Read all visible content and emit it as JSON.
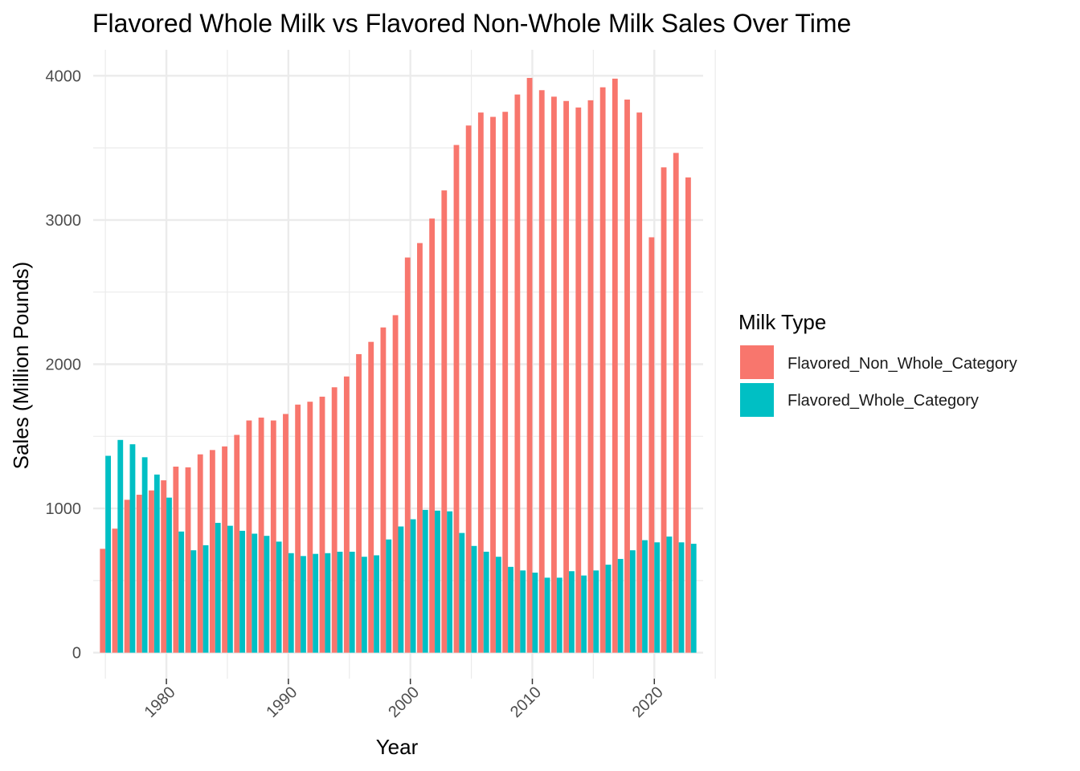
{
  "chart_data": {
    "type": "bar",
    "title": "Flavored Whole Milk vs Flavored Non-Whole Milk Sales Over Time",
    "xlabel": "Year",
    "ylabel": "Sales (Million Pounds)",
    "xlim": [
      1974,
      2024
    ],
    "ylim": [
      -180,
      4180
    ],
    "x_ticks": [
      1980,
      1990,
      2000,
      2010,
      2020
    ],
    "y_ticks": [
      0,
      1000,
      2000,
      3000,
      4000
    ],
    "grid": true,
    "legend": {
      "title": "Milk Type",
      "position": "right"
    },
    "x": [
      1975,
      1976,
      1977,
      1978,
      1979,
      1980,
      1981,
      1982,
      1983,
      1984,
      1985,
      1986,
      1987,
      1988,
      1989,
      1990,
      1991,
      1992,
      1993,
      1994,
      1995,
      1996,
      1997,
      1998,
      1999,
      2000,
      2001,
      2002,
      2003,
      2004,
      2005,
      2006,
      2007,
      2008,
      2009,
      2010,
      2011,
      2012,
      2013,
      2014,
      2015,
      2016,
      2017,
      2018,
      2019,
      2020,
      2021,
      2022,
      2023
    ],
    "series": [
      {
        "name": "Flavored_Non_Whole_Category",
        "color": "#F8766D",
        "values": [
          720,
          860,
          1060,
          1095,
          1125,
          1195,
          1290,
          1285,
          1375,
          1405,
          1430,
          1510,
          1610,
          1630,
          1610,
          1655,
          1720,
          1740,
          1775,
          1840,
          1915,
          2070,
          2155,
          2255,
          2340,
          2740,
          2840,
          3010,
          3205,
          3520,
          3655,
          3745,
          3715,
          3750,
          3870,
          3985,
          3900,
          3855,
          3825,
          3780,
          3830,
          3920,
          3980,
          3835,
          3745,
          2880,
          3365,
          3465,
          3295
        ]
      },
      {
        "name": "Flavored_Whole_Category",
        "color": "#00BFC4",
        "values": [
          1365,
          1475,
          1445,
          1355,
          1235,
          1075,
          840,
          710,
          745,
          900,
          880,
          845,
          825,
          810,
          770,
          690,
          670,
          685,
          690,
          700,
          700,
          665,
          675,
          785,
          875,
          925,
          990,
          985,
          980,
          830,
          740,
          700,
          665,
          595,
          570,
          555,
          520,
          520,
          565,
          535,
          570,
          610,
          650,
          710,
          780,
          765,
          805,
          765,
          755
        ]
      }
    ]
  }
}
